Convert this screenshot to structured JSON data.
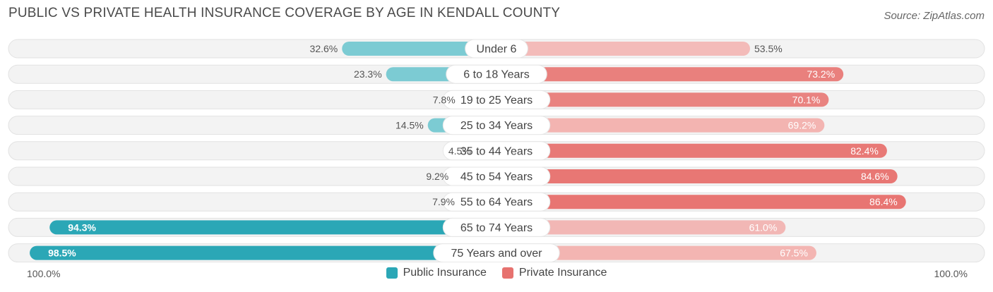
{
  "header": {
    "title": "PUBLIC VS PRIVATE HEALTH INSURANCE COVERAGE BY AGE IN KENDALL COUNTY",
    "source": "Source: ZipAtlas.com"
  },
  "axis": {
    "left_label": "100.0%",
    "right_label": "100.0%"
  },
  "legend": {
    "public_label": "Public Insurance",
    "private_label": "Private Insurance"
  },
  "colors": {
    "public_dark": "#2ba7b6",
    "public_light": "#7ccbd3",
    "private_dark": "#e7726f",
    "private_light": "#f2aaa7",
    "track": "#efefef"
  },
  "chart_data": {
    "type": "bar",
    "title": "PUBLIC VS PRIVATE HEALTH INSURANCE COVERAGE BY AGE IN KENDALL COUNTY",
    "xlim": [
      -100,
      100
    ],
    "categories": [
      "Under 6",
      "6 to 18 Years",
      "19 to 25 Years",
      "25 to 34 Years",
      "35 to 44 Years",
      "45 to 54 Years",
      "55 to 64 Years",
      "65 to 74 Years",
      "75 Years and over"
    ],
    "series": [
      {
        "name": "Public Insurance",
        "values": [
          32.6,
          23.3,
          7.8,
          14.5,
          4.5,
          9.2,
          7.9,
          94.3,
          98.5
        ],
        "labels": [
          "32.6%",
          "23.3%",
          "7.8%",
          "14.5%",
          "4.5%",
          "9.2%",
          "7.9%",
          "94.3%",
          "98.5%"
        ]
      },
      {
        "name": "Private Insurance",
        "values": [
          53.5,
          73.2,
          70.1,
          69.2,
          82.4,
          84.6,
          86.4,
          61.0,
          67.5
        ],
        "labels": [
          "53.5%",
          "73.2%",
          "70.1%",
          "69.2%",
          "82.4%",
          "84.6%",
          "86.4%",
          "61.0%",
          "67.5%"
        ]
      }
    ]
  }
}
